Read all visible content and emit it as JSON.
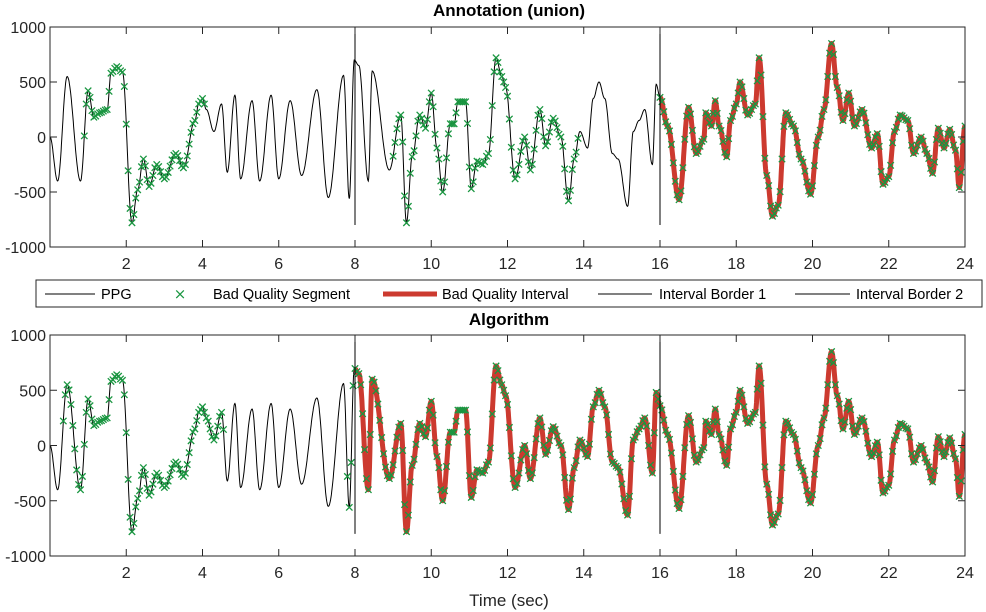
{
  "chart_data": {
    "type": "line",
    "shared_legend": {
      "entries": [
        {
          "label": "PPG",
          "style": "line",
          "color": "#000000"
        },
        {
          "label": "Bad Quality Segment",
          "style": "marker-x",
          "color": "#1a9641"
        },
        {
          "label": "Bad Quality Interval",
          "style": "thick-line",
          "color": "#cc3a2f"
        },
        {
          "label": "Interval Border 1",
          "style": "line",
          "color": "#000000"
        },
        {
          "label": "Interval Border 2",
          "style": "line",
          "color": "#000000"
        }
      ]
    },
    "xlabel": "Time (sec)",
    "xlim": [
      0,
      24
    ],
    "ylim": [
      -1000,
      1000
    ],
    "xticks": [
      2,
      4,
      6,
      8,
      10,
      12,
      14,
      16,
      18,
      20,
      22,
      24
    ],
    "yticks": [
      1000,
      500,
      0,
      -500,
      -1000
    ],
    "grid": false,
    "colors": {
      "ppg": "#000000",
      "segment": "#1a9641",
      "interval": "#cc3a2f",
      "border": "#000000"
    },
    "ppg_peaks": [
      [
        0,
        0
      ],
      [
        0.2,
        -400
      ],
      [
        0.45,
        550
      ],
      [
        0.8,
        -400
      ],
      [
        1.0,
        420
      ],
      [
        1.15,
        180
      ],
      [
        1.3,
        220
      ],
      [
        1.5,
        250
      ],
      [
        1.6,
        580
      ],
      [
        1.75,
        640
      ],
      [
        1.9,
        590
      ],
      [
        2.15,
        -780
      ],
      [
        2.3,
        -480
      ],
      [
        2.45,
        -200
      ],
      [
        2.6,
        -450
      ],
      [
        2.8,
        -250
      ],
      [
        3.0,
        -380
      ],
      [
        3.3,
        -150
      ],
      [
        3.5,
        -280
      ],
      [
        3.8,
        150
      ],
      [
        3.9,
        300
      ],
      [
        4.0,
        350
      ],
      [
        4.1,
        250
      ],
      [
        4.3,
        50
      ],
      [
        4.5,
        300
      ],
      [
        4.65,
        -320
      ],
      [
        4.85,
        380
      ],
      [
        5.0,
        -380
      ],
      [
        5.3,
        330
      ],
      [
        5.5,
        -400
      ],
      [
        5.8,
        380
      ],
      [
        6.0,
        -380
      ],
      [
        6.3,
        330
      ],
      [
        6.6,
        -350
      ],
      [
        7.0,
        430
      ],
      [
        7.3,
        -550
      ],
      [
        7.7,
        560
      ],
      [
        7.85,
        -560
      ],
      [
        7.98,
        700
      ],
      [
        8.1,
        650
      ],
      [
        8.35,
        -400
      ],
      [
        8.45,
        600
      ],
      [
        8.9,
        -300
      ],
      [
        9.2,
        200
      ],
      [
        9.35,
        -780
      ],
      [
        9.5,
        -180
      ],
      [
        9.7,
        200
      ],
      [
        9.85,
        80
      ],
      [
        10.0,
        400
      ],
      [
        10.15,
        -100
      ],
      [
        10.3,
        -500
      ],
      [
        10.5,
        120
      ],
      [
        10.6,
        120
      ],
      [
        10.7,
        320
      ],
      [
        10.9,
        320
      ],
      [
        11.05,
        -470
      ],
      [
        11.2,
        -220
      ],
      [
        11.35,
        -250
      ],
      [
        11.5,
        -150
      ],
      [
        11.7,
        720
      ],
      [
        11.85,
        550
      ],
      [
        11.95,
        450
      ],
      [
        12.2,
        -380
      ],
      [
        12.45,
        0
      ],
      [
        12.6,
        -300
      ],
      [
        12.85,
        250
      ],
      [
        13.0,
        -80
      ],
      [
        13.2,
        170
      ],
      [
        13.4,
        0
      ],
      [
        13.6,
        -580
      ],
      [
        13.75,
        -200
      ],
      [
        13.9,
        50
      ],
      [
        14.1,
        -100
      ],
      [
        14.25,
        350
      ],
      [
        14.4,
        500
      ],
      [
        14.55,
        350
      ],
      [
        14.75,
        -150
      ],
      [
        14.9,
        -200
      ],
      [
        15.15,
        -630
      ],
      [
        15.3,
        50
      ],
      [
        15.45,
        150
      ],
      [
        15.6,
        250
      ],
      [
        15.8,
        -250
      ],
      [
        15.9,
        480
      ],
      [
        16.0,
        360
      ],
      [
        16.2,
        100
      ],
      [
        16.5,
        -570
      ],
      [
        16.75,
        270
      ],
      [
        16.95,
        -150
      ],
      [
        17.15,
        -20
      ],
      [
        17.2,
        220
      ],
      [
        17.35,
        100
      ],
      [
        17.45,
        330
      ],
      [
        17.55,
        100
      ],
      [
        17.75,
        -180
      ],
      [
        17.85,
        150
      ],
      [
        18.0,
        300
      ],
      [
        18.1,
        500
      ],
      [
        18.3,
        200
      ],
      [
        18.5,
        300
      ],
      [
        18.6,
        720
      ],
      [
        18.8,
        -350
      ],
      [
        18.95,
        -720
      ],
      [
        19.1,
        -620
      ],
      [
        19.3,
        220
      ],
      [
        19.5,
        100
      ],
      [
        19.7,
        -200
      ],
      [
        19.95,
        -520
      ],
      [
        20.15,
        0
      ],
      [
        20.3,
        250
      ],
      [
        20.5,
        850
      ],
      [
        20.65,
        450
      ],
      [
        20.8,
        150
      ],
      [
        20.95,
        400
      ],
      [
        21.1,
        100
      ],
      [
        21.3,
        250
      ],
      [
        21.55,
        -100
      ],
      [
        21.7,
        30
      ],
      [
        21.85,
        -430
      ],
      [
        22.0,
        -360
      ],
      [
        22.15,
        50
      ],
      [
        22.3,
        200
      ],
      [
        22.5,
        150
      ],
      [
        22.65,
        -150
      ],
      [
        22.85,
        0
      ],
      [
        23.0,
        -150
      ],
      [
        23.15,
        -330
      ],
      [
        23.3,
        80
      ],
      [
        23.45,
        -100
      ],
      [
        23.6,
        70
      ],
      [
        23.75,
        -120
      ],
      [
        23.85,
        -460
      ],
      [
        24.0,
        100
      ]
    ],
    "panels": [
      {
        "title": "Annotation (union)",
        "bad_segments": [
          [
            0.9,
            4.05
          ],
          [
            9.0,
            13.85
          ],
          [
            16.0,
            24.0
          ]
        ],
        "bad_intervals": [
          [
            16.0,
            24.0
          ]
        ],
        "interval_borders": [
          8.0,
          16.0
        ]
      },
      {
        "title": "Algorithm",
        "bad_segments": [
          [
            0.35,
            0.85
          ],
          [
            0.9,
            4.55
          ],
          [
            7.8,
            24.0
          ]
        ],
        "bad_intervals": [
          [
            8.0,
            24.0
          ]
        ],
        "interval_borders": [
          8.0,
          16.0
        ]
      }
    ]
  }
}
